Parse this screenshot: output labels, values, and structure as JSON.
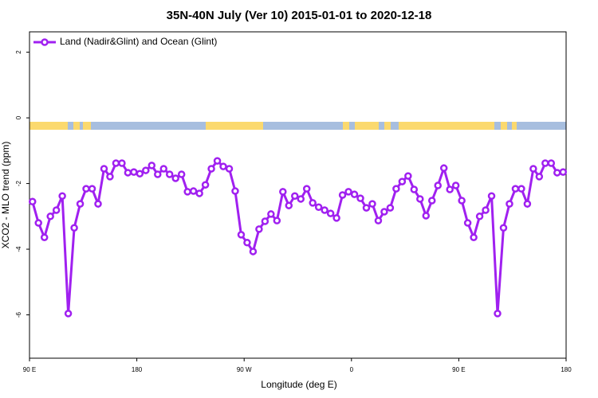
{
  "chart_data": {
    "type": "line",
    "title": "35N-40N July (Ver 10)   2015-01-01 to 2020-12-18",
    "xlabel": "Longitude (deg E)",
    "ylabel": "XCO2 - MLO trend (ppm)",
    "xlim": [
      90,
      540
    ],
    "ylim": [
      -7.32,
      2.62
    ],
    "xticks": [
      {
        "value": 90,
        "label": "90 E"
      },
      180,
      {
        "value": 270,
        "label": "90 W"
      },
      {
        "value": 360,
        "label": "0"
      },
      {
        "value": 450,
        "label": "90 E"
      },
      {
        "value": 540,
        "label": "180"
      }
    ],
    "yticks": [
      2,
      0,
      -2,
      -4,
      -6
    ],
    "legend": "top-left",
    "x": [
      92.5,
      97.5,
      102.5,
      107.5,
      112.5,
      117.5,
      122.5,
      127.5,
      132.5,
      137.5,
      142.5,
      147.5,
      152.5,
      157.5,
      162.5,
      167.5,
      172.5,
      177.5,
      182.5,
      187.5,
      192.5,
      197.5,
      202.5,
      207.5,
      212.5,
      217.5,
      222.5,
      227.5,
      232.5,
      237.5,
      242.5,
      247.5,
      252.5,
      257.5,
      262.5,
      267.5,
      272.5,
      277.5,
      282.5,
      287.5,
      292.5,
      297.5,
      302.5,
      307.5,
      312.5,
      317.5,
      322.5,
      327.5,
      332.5,
      337.5,
      342.5,
      347.5,
      352.5,
      357.5,
      362.5,
      367.5,
      372.5,
      377.5,
      382.5,
      387.5,
      392.5,
      397.5,
      402.5,
      407.5,
      412.5,
      417.5,
      422.5,
      427.5,
      432.5,
      437.5,
      442.5,
      447.5,
      452.5,
      457.5,
      462.5,
      467.5,
      472.5,
      477.5,
      482.5,
      487.5,
      492.5,
      497.5,
      502.5,
      507.5,
      512.5,
      517.5,
      522.5,
      527.5,
      532.5,
      537.5
    ],
    "series": [
      {
        "name": "Land (Nadir&Glint) and Ocean (Glint)",
        "color": "#a020f0",
        "values": [
          -2.55,
          -3.2,
          -3.64,
          -3.0,
          -2.81,
          -2.38,
          -5.96,
          -3.35,
          -2.62,
          -2.16,
          -2.16,
          -2.62,
          -1.55,
          -1.79,
          -1.38,
          -1.38,
          -1.67,
          -1.65,
          -1.7,
          -1.6,
          -1.45,
          -1.72,
          -1.55,
          -1.72,
          -1.84,
          -1.72,
          -2.25,
          -2.23,
          -2.3,
          -2.04,
          -1.55,
          -1.31,
          -1.48,
          -1.55,
          -2.23,
          -3.56,
          -3.8,
          -4.07,
          -3.39,
          -3.15,
          -2.93,
          -3.13,
          -2.25,
          -2.67,
          -2.38,
          -2.47,
          -2.16,
          -2.59,
          -2.72,
          -2.81,
          -2.91,
          -3.05,
          -2.35,
          -2.25,
          -2.33,
          -2.45,
          -2.74,
          -2.62,
          -3.13,
          -2.86,
          -2.74,
          -2.16,
          -1.94,
          -1.77,
          -2.18,
          -2.47,
          -2.98,
          -2.52,
          -2.06,
          -1.53,
          -2.18,
          -2.06,
          -2.52,
          -3.2,
          -3.64,
          -3.0,
          -2.81,
          -2.38,
          -5.96,
          -3.35,
          -2.62,
          -2.16,
          -2.16,
          -2.62,
          -1.55,
          -1.79,
          -1.38,
          -1.38,
          -1.67,
          -1.65
        ]
      }
    ]
  }
}
